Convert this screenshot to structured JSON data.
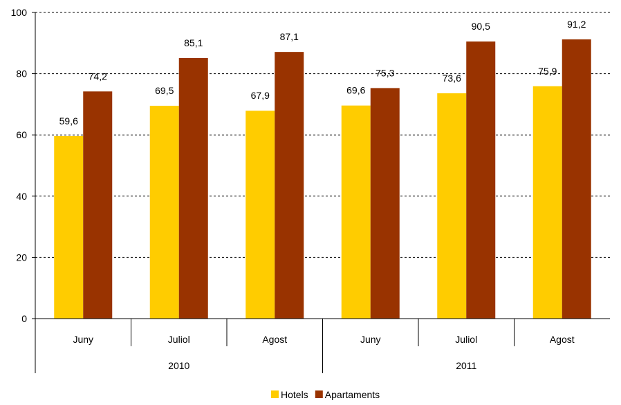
{
  "chart_data": {
    "type": "bar",
    "groups": [
      {
        "label": "2010",
        "categories": [
          "Juny",
          "Juliol",
          "Agost"
        ]
      },
      {
        "label": "2011",
        "categories": [
          "Juny",
          "Juliol",
          "Agost"
        ]
      }
    ],
    "categories": [
      "Juny",
      "Juliol",
      "Agost",
      "Juny",
      "Juliol",
      "Agost"
    ],
    "series": [
      {
        "name": "Hotels",
        "color": "#FFCC00",
        "values": [
          59.6,
          69.5,
          67.9,
          69.6,
          73.6,
          75.9
        ],
        "labels": [
          "59,6",
          "69,5",
          "67,9",
          "69,6",
          "73,6",
          "75,9"
        ]
      },
      {
        "name": "Apartaments",
        "color": "#993300",
        "values": [
          74.2,
          85.1,
          87.1,
          75.3,
          90.5,
          91.2
        ],
        "labels": [
          "74,2",
          "85,1",
          "87,1",
          "75,3",
          "90,5",
          "91,2"
        ]
      }
    ],
    "ylim": [
      0,
      100
    ],
    "yticks": [
      0,
      20,
      40,
      60,
      80,
      100
    ],
    "ytick_labels": [
      "0",
      "20",
      "40",
      "60",
      "80",
      "100"
    ],
    "grid": true,
    "legend_position": "bottom-center",
    "title": "",
    "xlabel": "",
    "ylabel": ""
  }
}
